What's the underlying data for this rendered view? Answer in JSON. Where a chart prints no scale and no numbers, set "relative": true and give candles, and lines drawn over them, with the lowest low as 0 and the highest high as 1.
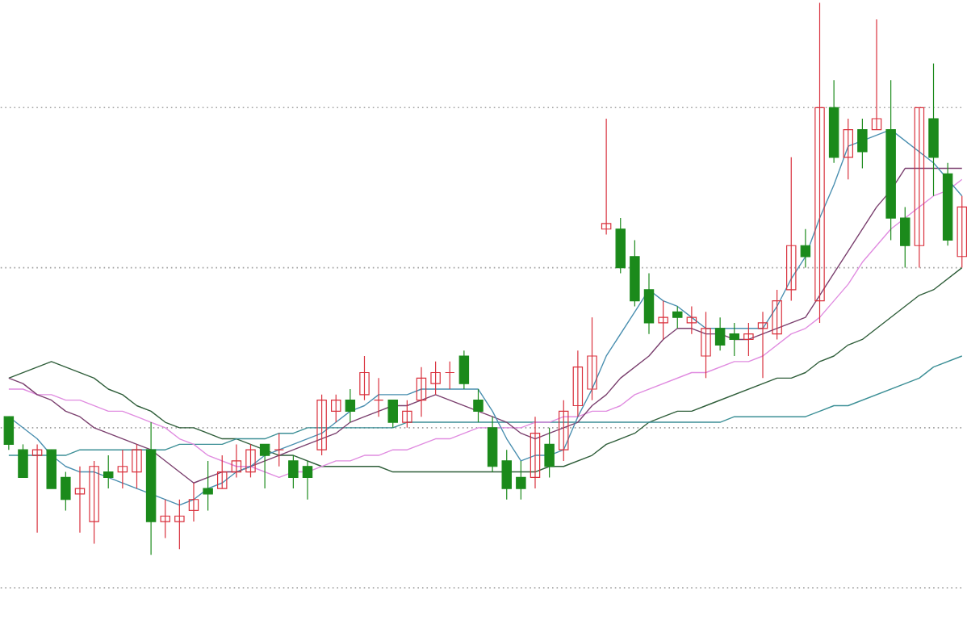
{
  "chart_data": {
    "type": "candlestick",
    "relative": true,
    "categories": [
      null,
      null,
      null,
      null,
      null,
      null,
      null,
      null,
      null,
      null,
      null,
      null,
      null,
      null,
      null,
      null,
      null,
      null,
      null,
      null,
      null,
      null,
      null,
      null,
      null,
      null,
      null,
      null,
      null,
      null,
      null,
      null,
      null,
      null,
      null,
      null,
      null,
      null,
      null,
      null,
      null,
      null,
      null,
      null,
      null,
      null,
      null,
      null,
      null,
      null,
      null,
      null,
      null,
      null,
      null,
      null,
      null,
      null,
      null,
      null,
      null,
      null,
      null,
      null,
      null,
      null,
      null,
      null
    ],
    "ohlc": [
      [
        0.25,
        0.25,
        0.19,
        0.2
      ],
      [
        0.19,
        0.2,
        0.14,
        0.14
      ],
      [
        0.18,
        0.2,
        0.04,
        0.19
      ],
      [
        0.19,
        0.19,
        0.12,
        0.12
      ],
      [
        0.14,
        0.15,
        0.08,
        0.1
      ],
      [
        0.11,
        0.16,
        0.04,
        0.12
      ],
      [
        0.06,
        0.17,
        0.02,
        0.16
      ],
      [
        0.15,
        0.18,
        0.12,
        0.14
      ],
      [
        0.15,
        0.19,
        0.12,
        0.16
      ],
      [
        0.15,
        0.2,
        0.12,
        0.19
      ],
      [
        0.19,
        0.24,
        0,
        0.06
      ],
      [
        0.06,
        0.1,
        0.03,
        0.07
      ],
      [
        0.06,
        0.1,
        0.01,
        0.07
      ],
      [
        0.08,
        0.13,
        0.06,
        0.1
      ],
      [
        0.12,
        0.17,
        0.08,
        0.11
      ],
      [
        0.12,
        0.18,
        0.12,
        0.15
      ],
      [
        0.15,
        0.2,
        0.14,
        0.17
      ],
      [
        0.15,
        0.2,
        0.14,
        0.19
      ],
      [
        0.2,
        0.2,
        0.12,
        0.18
      ],
      [
        0.19,
        0.22,
        0.16,
        0.19
      ],
      [
        0.17,
        0.18,
        0.12,
        0.14
      ],
      [
        0.16,
        0.17,
        0.1,
        0.14
      ],
      [
        0.19,
        0.29,
        0.18,
        0.28
      ],
      [
        0.26,
        0.29,
        0.24,
        0.28
      ],
      [
        0.28,
        0.3,
        0.24,
        0.26
      ],
      [
        0.29,
        0.36,
        0.28,
        0.33
      ],
      [
        0.28,
        0.32,
        0.25,
        0.28
      ],
      [
        0.28,
        0.28,
        0.23,
        0.24
      ],
      [
        0.24,
        0.28,
        0.23,
        0.26
      ],
      [
        0.28,
        0.34,
        0.25,
        0.32
      ],
      [
        0.31,
        0.35,
        0.29,
        0.33
      ],
      [
        0.33,
        0.35,
        0.3,
        0.33
      ],
      [
        0.36,
        0.37,
        0.3,
        0.31
      ],
      [
        0.28,
        0.3,
        0.24,
        0.26
      ],
      [
        0.23,
        0.25,
        0.15,
        0.16
      ],
      [
        0.17,
        0.19,
        0.1,
        0.12
      ],
      [
        0.14,
        0.17,
        0.1,
        0.12
      ],
      [
        0.14,
        0.25,
        0.12,
        0.22
      ],
      [
        0.2,
        0.23,
        0.14,
        0.16
      ],
      [
        0.19,
        0.28,
        0.17,
        0.26
      ],
      [
        0.27,
        0.37,
        0.25,
        0.34
      ],
      [
        0.3,
        0.43,
        0.28,
        0.36
      ],
      [
        0.59,
        0.79,
        0.58,
        0.6
      ],
      [
        0.59,
        0.61,
        0.51,
        0.52
      ],
      [
        0.54,
        0.57,
        0.45,
        0.46
      ],
      [
        0.48,
        0.51,
        0.4,
        0.42
      ],
      [
        0.42,
        0.46,
        0.39,
        0.43
      ],
      [
        0.44,
        0.45,
        0.41,
        0.43
      ],
      [
        0.42,
        0.45,
        0.4,
        0.43
      ],
      [
        0.36,
        0.44,
        0.32,
        0.41
      ],
      [
        0.41,
        0.43,
        0.37,
        0.38
      ],
      [
        0.4,
        0.42,
        0.36,
        0.39
      ],
      [
        0.39,
        0.42,
        0.36,
        0.4
      ],
      [
        0.41,
        0.44,
        0.32,
        0.42
      ],
      [
        0.4,
        0.48,
        0.39,
        0.46
      ],
      [
        0.48,
        0.72,
        0.46,
        0.56
      ],
      [
        0.56,
        0.59,
        0.52,
        0.54
      ],
      [
        0.46,
        1,
        0.42,
        0.81
      ],
      [
        0.81,
        0.86,
        0.71,
        0.72
      ],
      [
        0.72,
        0.79,
        0.68,
        0.77
      ],
      [
        0.77,
        0.79,
        0.7,
        0.73
      ],
      [
        0.77,
        0.97,
        0.77,
        0.79
      ],
      [
        0.77,
        0.86,
        0.57,
        0.61
      ],
      [
        0.61,
        0.63,
        0.52,
        0.56
      ],
      [
        0.56,
        0.81,
        0.52,
        0.81
      ],
      [
        0.79,
        0.89,
        0.65,
        0.72
      ],
      [
        0.69,
        0.71,
        0.56,
        0.57
      ],
      [
        0.54,
        0.65,
        0.52,
        0.63
      ]
    ],
    "colors": [
      "#1b8a1b",
      "#1b8a1b",
      "#d9303c",
      "#1b8a1b",
      "#1b8a1b",
      "#d9303c",
      "#d9303c",
      "#1b8a1b",
      "#d9303c",
      "#d9303c",
      "#1b8a1b",
      "#d9303c",
      "#d9303c",
      "#d9303c",
      "#1b8a1b",
      "#d9303c",
      "#d9303c",
      "#d9303c",
      "#1b8a1b",
      "#d9303c",
      "#1b8a1b",
      "#1b8a1b",
      "#d9303c",
      "#d9303c",
      "#1b8a1b",
      "#d9303c",
      "#d9303c",
      "#1b8a1b",
      "#d9303c",
      "#d9303c",
      "#d9303c",
      "#d9303c",
      "#1b8a1b",
      "#1b8a1b",
      "#1b8a1b",
      "#1b8a1b",
      "#1b8a1b",
      "#d9303c",
      "#1b8a1b",
      "#d9303c",
      "#d9303c",
      "#d9303c",
      "#d9303c",
      "#1b8a1b",
      "#1b8a1b",
      "#1b8a1b",
      "#d9303c",
      "#1b8a1b",
      "#d9303c",
      "#d9303c",
      "#1b8a1b",
      "#1b8a1b",
      "#d9303c",
      "#d9303c",
      "#d9303c",
      "#d9303c",
      "#1b8a1b",
      "#d9303c",
      "#1b8a1b",
      "#d9303c",
      "#1b8a1b",
      "#d9303c",
      "#1b8a1b",
      "#1b8a1b",
      "#d9303c",
      "#1b8a1b",
      "#1b8a1b",
      "#d9303c"
    ],
    "series": [
      {
        "type": "line",
        "color": "#2f5e3a",
        "values": [
          0.32,
          0.33,
          0.34,
          0.35,
          0.34,
          0.33,
          0.32,
          0.3,
          0.29,
          0.27,
          0.26,
          0.24,
          0.23,
          0.23,
          0.22,
          0.21,
          0.21,
          0.2,
          0.19,
          0.18,
          0.18,
          0.17,
          0.16,
          0.16,
          0.16,
          0.16,
          0.16,
          0.15,
          0.15,
          0.15,
          0.15,
          0.15,
          0.15,
          0.15,
          0.15,
          0.15,
          0.15,
          0.15,
          0.16,
          0.16,
          0.17,
          0.18,
          0.2,
          0.21,
          0.22,
          0.24,
          0.25,
          0.26,
          0.26,
          0.27,
          0.28,
          0.29,
          0.3,
          0.31,
          0.32,
          0.32,
          0.33,
          0.35,
          0.36,
          0.38,
          0.39,
          0.41,
          0.43,
          0.45,
          0.47,
          0.48,
          0.5,
          0.52
        ]
      },
      {
        "type": "line",
        "color": "#3c8f96",
        "values": [
          0.18,
          0.18,
          0.18,
          0.18,
          0.18,
          0.19,
          0.19,
          0.19,
          0.19,
          0.19,
          0.19,
          0.19,
          0.2,
          0.2,
          0.2,
          0.2,
          0.21,
          0.21,
          0.21,
          0.22,
          0.22,
          0.23,
          0.23,
          0.23,
          0.23,
          0.23,
          0.23,
          0.23,
          0.24,
          0.24,
          0.24,
          0.24,
          0.24,
          0.24,
          0.24,
          0.24,
          0.24,
          0.24,
          0.24,
          0.24,
          0.24,
          0.24,
          0.24,
          0.24,
          0.24,
          0.24,
          0.24,
          0.24,
          0.24,
          0.24,
          0.24,
          0.25,
          0.25,
          0.25,
          0.25,
          0.25,
          0.25,
          0.26,
          0.27,
          0.27,
          0.28,
          0.29,
          0.3,
          0.31,
          0.32,
          0.34,
          0.35,
          0.36
        ]
      },
      {
        "type": "line",
        "color": "#e08ce0",
        "values": [
          0.3,
          0.3,
          0.29,
          0.29,
          0.28,
          0.28,
          0.27,
          0.26,
          0.26,
          0.25,
          0.24,
          0.23,
          0.21,
          0.2,
          0.18,
          0.17,
          0.16,
          0.16,
          0.15,
          0.14,
          0.15,
          0.15,
          0.16,
          0.17,
          0.17,
          0.18,
          0.18,
          0.19,
          0.19,
          0.2,
          0.21,
          0.21,
          0.22,
          0.23,
          0.23,
          0.23,
          0.23,
          0.24,
          0.24,
          0.25,
          0.25,
          0.26,
          0.26,
          0.27,
          0.29,
          0.3,
          0.31,
          0.32,
          0.33,
          0.33,
          0.34,
          0.35,
          0.35,
          0.36,
          0.38,
          0.4,
          0.41,
          0.43,
          0.46,
          0.49,
          0.53,
          0.56,
          0.59,
          0.61,
          0.63,
          0.65,
          0.66,
          0.68
        ]
      },
      {
        "type": "line",
        "color": "#7a3f6e",
        "values": [
          0.32,
          0.31,
          0.29,
          0.28,
          0.26,
          0.25,
          0.23,
          0.22,
          0.21,
          0.2,
          0.19,
          0.17,
          0.15,
          0.13,
          0.14,
          0.15,
          0.15,
          0.16,
          0.17,
          0.18,
          0.19,
          0.2,
          0.21,
          0.22,
          0.24,
          0.25,
          0.26,
          0.27,
          0.27,
          0.28,
          0.29,
          0.28,
          0.27,
          0.26,
          0.25,
          0.24,
          0.22,
          0.21,
          0.22,
          0.23,
          0.24,
          0.27,
          0.29,
          0.32,
          0.34,
          0.36,
          0.39,
          0.41,
          0.41,
          0.4,
          0.4,
          0.39,
          0.39,
          0.4,
          0.41,
          0.42,
          0.43,
          0.47,
          0.51,
          0.55,
          0.59,
          0.63,
          0.66,
          0.7,
          0.7,
          0.7,
          0.7,
          0.7
        ]
      },
      {
        "type": "line",
        "color": "#4a8fb0",
        "values": [
          0.25,
          0.23,
          0.21,
          0.18,
          0.16,
          0.15,
          0.15,
          0.14,
          0.13,
          0.12,
          0.11,
          0.1,
          0.09,
          0.1,
          0.12,
          0.13,
          0.15,
          0.16,
          0.18,
          0.19,
          0.2,
          0.21,
          0.22,
          0.24,
          0.26,
          0.27,
          0.29,
          0.29,
          0.29,
          0.3,
          0.3,
          0.3,
          0.3,
          0.3,
          0.26,
          0.21,
          0.17,
          0.18,
          0.18,
          0.19,
          0.25,
          0.3,
          0.36,
          0.4,
          0.44,
          0.48,
          0.46,
          0.45,
          0.43,
          0.41,
          0.41,
          0.41,
          0.41,
          0.41,
          0.45,
          0.5,
          0.54,
          0.61,
          0.67,
          0.74,
          0.75,
          0.76,
          0.77,
          0.75,
          0.73,
          0.71,
          0.68,
          0.65
        ]
      }
    ],
    "ref_lines": [
      {
        "axis": "y",
        "value": 0.81,
        "color": "#a0a0a0",
        "line_style": "dotted"
      },
      {
        "axis": "y",
        "value": 0.52,
        "color": "#a0a0a0",
        "line_style": "dotted"
      },
      {
        "axis": "y",
        "value": 0.23,
        "color": "#a0a0a0",
        "line_style": "dotted"
      },
      {
        "axis": "y",
        "value": -0.06,
        "color": "#a0a0a0",
        "line_style": "dotted"
      }
    ]
  }
}
